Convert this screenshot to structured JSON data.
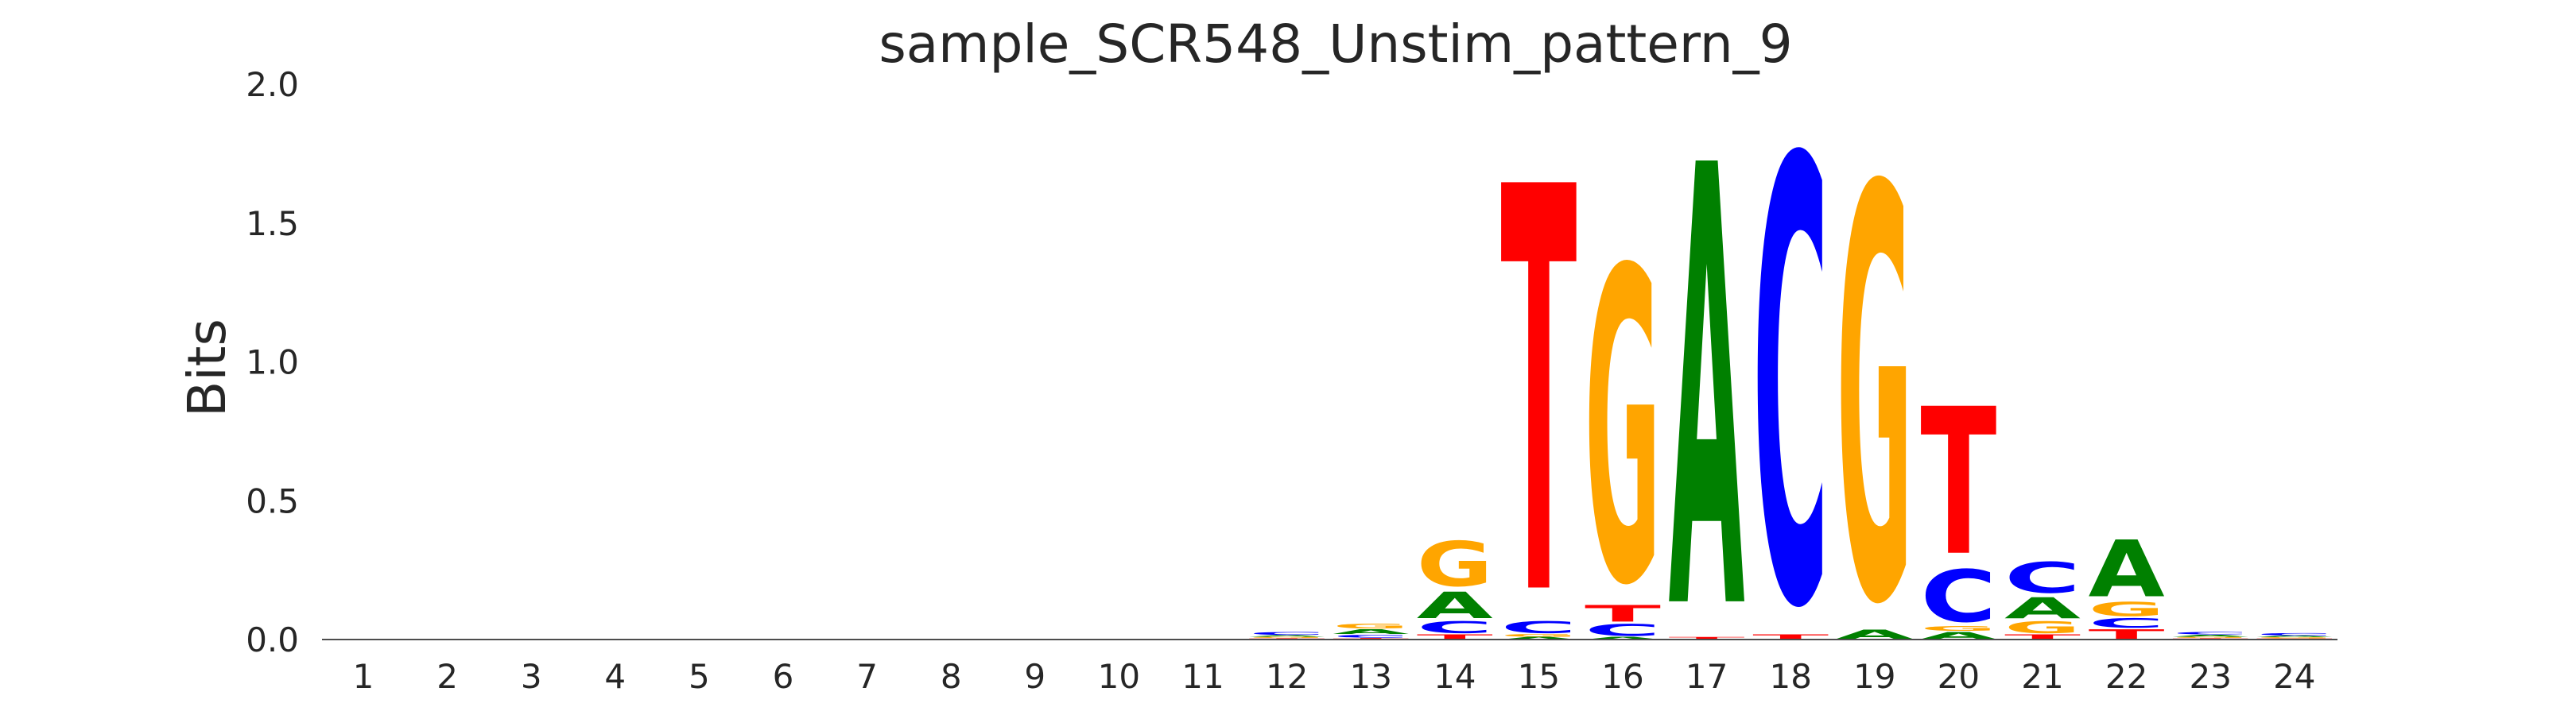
{
  "chart_data": {
    "type": "sequence-logo",
    "title": "sample_SCR548_Unstim_pattern_9",
    "ylabel": "Bits",
    "xlabel": "",
    "ylim": [
      0,
      2
    ],
    "y_ticks": [
      "0.0",
      "0.5",
      "1.0",
      "1.5",
      "2.0"
    ],
    "positions": [
      "1",
      "2",
      "3",
      "4",
      "5",
      "6",
      "7",
      "8",
      "9",
      "10",
      "11",
      "12",
      "13",
      "14",
      "15",
      "16",
      "17",
      "18",
      "19",
      "20",
      "21",
      "22",
      "23",
      "24"
    ],
    "colors": {
      "A": "#008000",
      "C": "#0000ff",
      "G": "#ffa500",
      "T": "#ff0000"
    },
    "stacks": [
      [],
      [],
      [],
      [],
      [],
      [],
      [],
      [],
      [],
      [],
      [],
      [
        {
          "b": "T",
          "h": 0.005
        },
        {
          "b": "G",
          "h": 0.005
        },
        {
          "b": "A",
          "h": 0.006
        },
        {
          "b": "C",
          "h": 0.012
        }
      ],
      [
        {
          "b": "T",
          "h": 0.006
        },
        {
          "b": "C",
          "h": 0.012
        },
        {
          "b": "A",
          "h": 0.02
        },
        {
          "b": "G",
          "h": 0.02
        }
      ],
      [
        {
          "b": "T",
          "h": 0.02
        },
        {
          "b": "C",
          "h": 0.05
        },
        {
          "b": "A",
          "h": 0.11
        },
        {
          "b": "G",
          "h": 0.19
        }
      ],
      [
        {
          "b": "A",
          "h": 0.01
        },
        {
          "b": "G",
          "h": 0.01
        },
        {
          "b": "C",
          "h": 0.05
        },
        {
          "b": "T",
          "h": 1.71
        }
      ],
      [
        {
          "b": "A",
          "h": 0.01
        },
        {
          "b": "C",
          "h": 0.05
        },
        {
          "b": "T",
          "h": 0.07
        },
        {
          "b": "G",
          "h": 1.32
        }
      ],
      [
        {
          "b": "T",
          "h": 0.01
        },
        {
          "b": "A",
          "h": 1.86
        }
      ],
      [
        {
          "b": "T",
          "h": 0.02
        },
        {
          "b": "C",
          "h": 1.87
        }
      ],
      [
        {
          "b": "A",
          "h": 0.04
        },
        {
          "b": "G",
          "h": 1.74
        }
      ],
      [
        {
          "b": "A",
          "h": 0.03
        },
        {
          "b": "G",
          "h": 0.02
        },
        {
          "b": "C",
          "h": 0.22
        },
        {
          "b": "T",
          "h": 0.62
        }
      ],
      [
        {
          "b": "T",
          "h": 0.02
        },
        {
          "b": "G",
          "h": 0.05
        },
        {
          "b": "A",
          "h": 0.09
        },
        {
          "b": "C",
          "h": 0.13
        }
      ],
      [
        {
          "b": "T",
          "h": 0.04
        },
        {
          "b": "C",
          "h": 0.04
        },
        {
          "b": "G",
          "h": 0.06
        },
        {
          "b": "A",
          "h": 0.24
        }
      ],
      [
        {
          "b": "T",
          "h": 0.005
        },
        {
          "b": "G",
          "h": 0.005
        },
        {
          "b": "A",
          "h": 0.008
        },
        {
          "b": "C",
          "h": 0.01
        }
      ],
      [
        {
          "b": "T",
          "h": 0.004
        },
        {
          "b": "G",
          "h": 0.004
        },
        {
          "b": "A",
          "h": 0.006
        },
        {
          "b": "C",
          "h": 0.01
        }
      ]
    ]
  }
}
